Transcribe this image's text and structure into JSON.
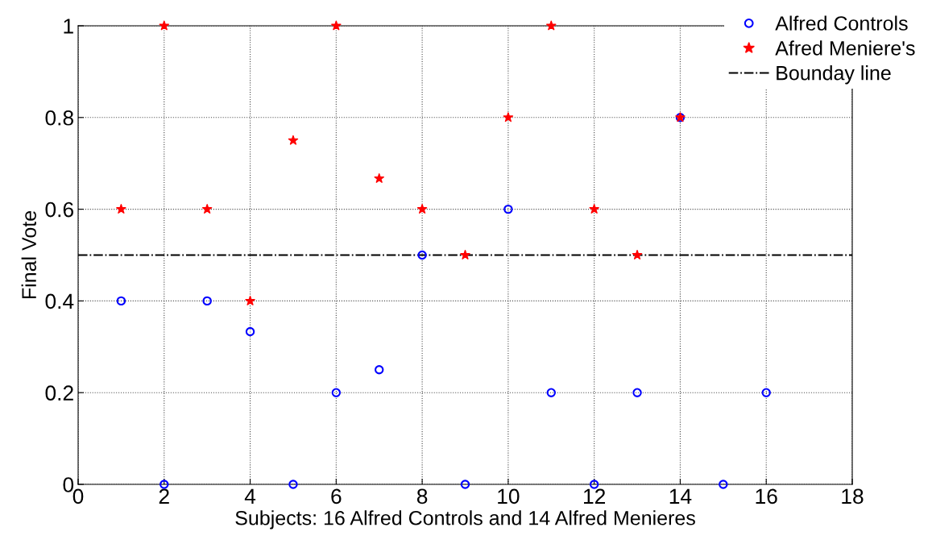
{
  "chart_data": {
    "type": "scatter",
    "xlabel": "Subjects: 16 Alfred Controls and 14 Alfred Menieres",
    "ylabel": "Final Vote",
    "xlim": [
      0,
      18
    ],
    "xticks": [
      0,
      2,
      4,
      6,
      8,
      10,
      12,
      14,
      16,
      18
    ],
    "ylim": [
      0,
      1
    ],
    "yticks": [
      0,
      0.2,
      0.4,
      0.6,
      0.8,
      1
    ],
    "grid": true,
    "legend": "top right",
    "series": [
      {
        "name": "Alfred Controls",
        "color": "#0000ff",
        "marker": "circle",
        "x": [
          1,
          2,
          3,
          4,
          5,
          6,
          7,
          8,
          9,
          10,
          11,
          12,
          13,
          14,
          15,
          16
        ],
        "values": [
          0.4,
          0,
          0.4,
          0.333,
          0,
          0.2,
          0.25,
          0.5,
          0,
          0.6,
          0.2,
          0,
          0.2,
          0.8,
          0,
          0.2
        ]
      },
      {
        "name": "Afred Meniere's",
        "color": "#ff0000",
        "marker": "star",
        "x": [
          1,
          2,
          3,
          4,
          5,
          6,
          7,
          8,
          9,
          10,
          11,
          12,
          13,
          14
        ],
        "values": [
          0.6,
          1,
          0.6,
          0.4,
          0.75,
          1,
          0.667,
          0.6,
          0.5,
          0.8,
          1,
          0.6,
          0.5,
          0.8
        ]
      }
    ],
    "ref_lines": [
      {
        "axis": "y",
        "value": 0.5,
        "label": "Bounday line",
        "color": "#000000",
        "line_style": "dashdot"
      }
    ]
  }
}
